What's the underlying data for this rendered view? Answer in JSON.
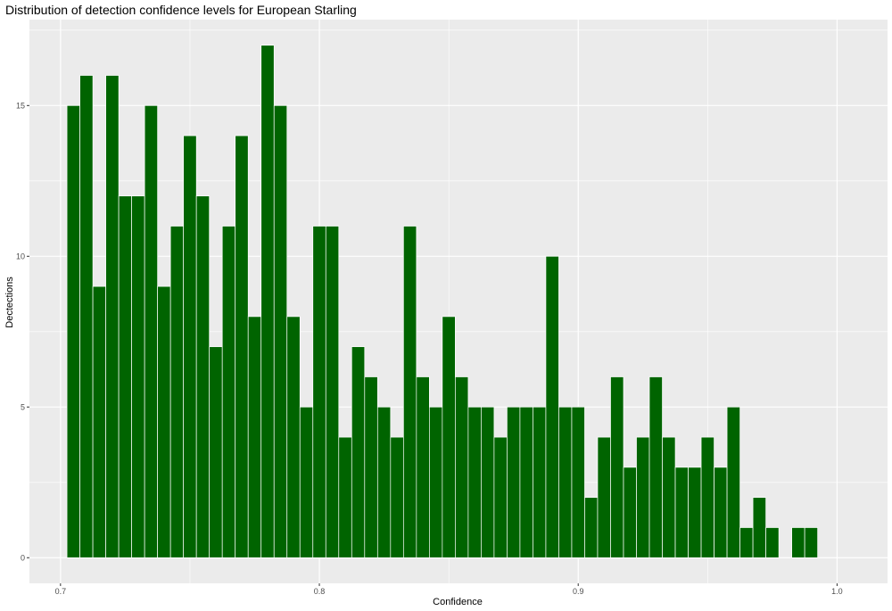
{
  "chart_data": {
    "type": "bar",
    "title": "Distribution of detection confidence levels for European Starling",
    "xlabel": "Confidence",
    "ylabel": "Dectections",
    "xlim": [
      0.688,
      1.0195
    ],
    "ylim": [
      -0.85,
      17.85
    ],
    "x_ticks": [
      0.7,
      0.8,
      0.9,
      1.0
    ],
    "x_tick_labels": [
      "0.7",
      "0.8",
      "0.9",
      "1.0"
    ],
    "y_ticks": [
      0,
      5,
      10,
      15
    ],
    "y_tick_labels": [
      "0",
      "5",
      "10",
      "15"
    ],
    "bin_width": 0.005,
    "x": [
      0.705,
      0.71,
      0.715,
      0.72,
      0.725,
      0.73,
      0.735,
      0.74,
      0.745,
      0.75,
      0.755,
      0.76,
      0.765,
      0.77,
      0.775,
      0.78,
      0.785,
      0.79,
      0.795,
      0.8,
      0.805,
      0.81,
      0.815,
      0.82,
      0.825,
      0.83,
      0.835,
      0.84,
      0.845,
      0.85,
      0.855,
      0.86,
      0.865,
      0.87,
      0.875,
      0.88,
      0.885,
      0.89,
      0.895,
      0.9,
      0.905,
      0.91,
      0.915,
      0.92,
      0.925,
      0.93,
      0.935,
      0.94,
      0.945,
      0.95,
      0.955,
      0.96,
      0.965,
      0.97,
      0.975,
      0.98,
      0.985,
      0.99
    ],
    "values": [
      15,
      16,
      9,
      16,
      12,
      12,
      15,
      9,
      11,
      14,
      12,
      7,
      11,
      14,
      8,
      17,
      15,
      8,
      5,
      11,
      11,
      4,
      7,
      6,
      5,
      4,
      11,
      6,
      5,
      8,
      6,
      5,
      5,
      4,
      5,
      5,
      5,
      10,
      5,
      5,
      2,
      4,
      6,
      3,
      4,
      6,
      4,
      3,
      3,
      4,
      3,
      5,
      1,
      2,
      1,
      0,
      1,
      1
    ],
    "bar_color": "#006400",
    "bar_outline": "#ffffff",
    "panel_color": "#ebebeb",
    "grid_color": "#ffffff",
    "grid": true,
    "legend": "none"
  }
}
